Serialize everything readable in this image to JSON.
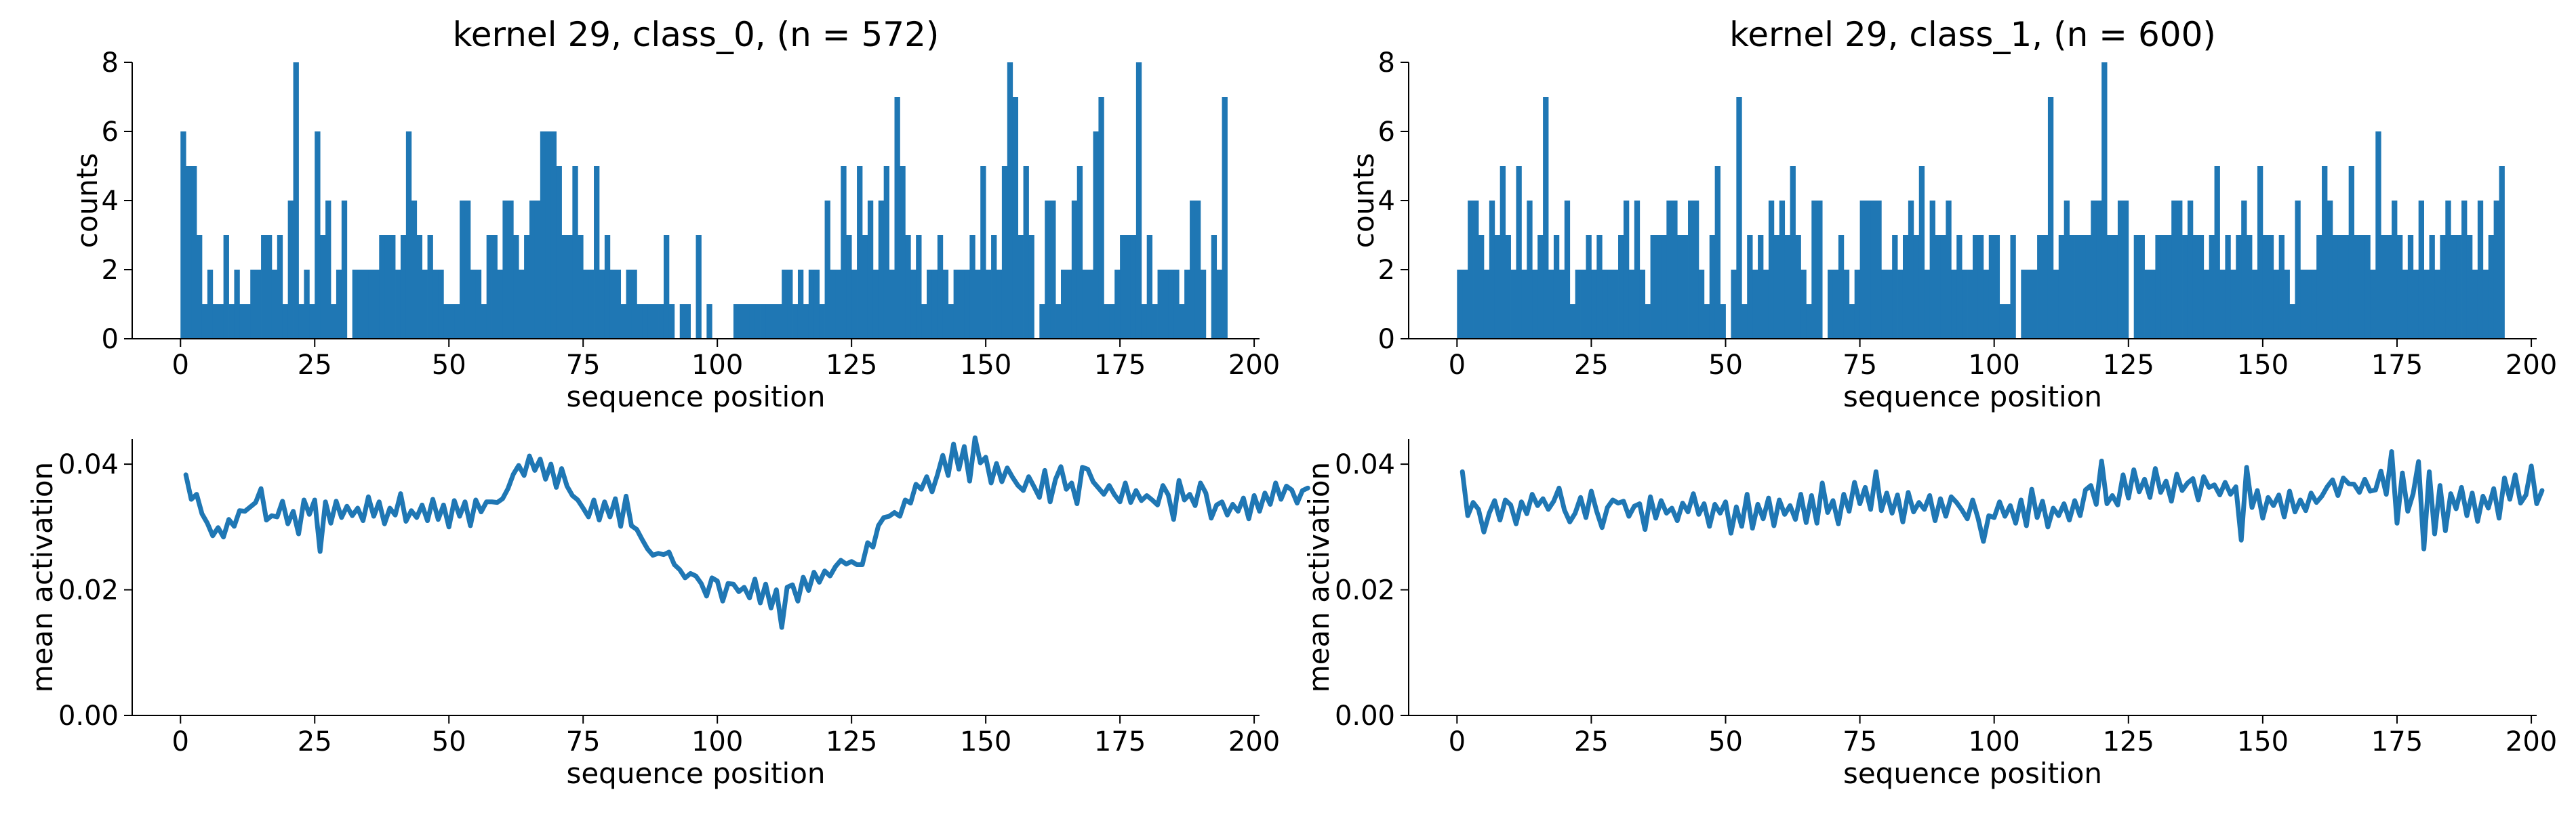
{
  "colors": {
    "series": "#1f77b4",
    "axis": "#000000",
    "background": "#ffffff"
  },
  "chart_data": [
    {
      "type": "bar",
      "title": "kernel 29, class_0, (n = 572)",
      "xlabel": "sequence position",
      "ylabel": "counts",
      "xlim": [
        -9,
        201
      ],
      "ylim": [
        0,
        8
      ],
      "xticks": [
        0,
        25,
        50,
        75,
        100,
        125,
        150,
        175,
        200
      ],
      "yticks": [
        0,
        2,
        4,
        6,
        8
      ],
      "x_start": 0,
      "bin_width": 1,
      "grid": false,
      "values": [
        6,
        5,
        5,
        3,
        1,
        2,
        1,
        1,
        3,
        1,
        2,
        1,
        1,
        2,
        2,
        3,
        3,
        2,
        3,
        1,
        4,
        8,
        1,
        2,
        1,
        6,
        3,
        4,
        1,
        2,
        4,
        0,
        2,
        2,
        2,
        2,
        2,
        3,
        3,
        3,
        2,
        3,
        6,
        4,
        3,
        2,
        3,
        2,
        2,
        1,
        1,
        1,
        4,
        4,
        2,
        2,
        1,
        3,
        3,
        2,
        4,
        4,
        3,
        2,
        3,
        4,
        4,
        6,
        6,
        6,
        5,
        3,
        3,
        5,
        3,
        2,
        2,
        5,
        2,
        3,
        2,
        2,
        1,
        2,
        2,
        1,
        1,
        1,
        1,
        1,
        3,
        1,
        0,
        1,
        1,
        0,
        3,
        0,
        1,
        0,
        0,
        0,
        0,
        1,
        1,
        1,
        1,
        1,
        1,
        1,
        1,
        1,
        2,
        2,
        1,
        2,
        1,
        2,
        2,
        1,
        4,
        2,
        2,
        5,
        3,
        2,
        5,
        3,
        4,
        2,
        4,
        5,
        2,
        7,
        5,
        3,
        2,
        3,
        1,
        2,
        2,
        3,
        2,
        1,
        2,
        2,
        2,
        3,
        2,
        5,
        2,
        3,
        2,
        5,
        8,
        7,
        3,
        5,
        3,
        0,
        1,
        4,
        4,
        1,
        2,
        2,
        4,
        5,
        2,
        2,
        6,
        7,
        1,
        1,
        2,
        3,
        3,
        3,
        8,
        1,
        3,
        1,
        2,
        2,
        2,
        2,
        1,
        2,
        4,
        4,
        2,
        0,
        3,
        2,
        7
      ]
    },
    {
      "type": "bar",
      "title": "kernel 29, class_1, (n = 600)",
      "xlabel": "sequence position",
      "ylabel": "counts",
      "xlim": [
        -9,
        201
      ],
      "ylim": [
        0,
        8
      ],
      "xticks": [
        0,
        25,
        50,
        75,
        100,
        125,
        150,
        175,
        200
      ],
      "yticks": [
        0,
        2,
        4,
        6,
        8
      ],
      "x_start": 0,
      "bin_width": 1,
      "grid": false,
      "values": [
        2,
        2,
        4,
        4,
        3,
        2,
        4,
        3,
        5,
        3,
        2,
        5,
        2,
        4,
        2,
        3,
        7,
        2,
        3,
        2,
        4,
        1,
        2,
        2,
        3,
        2,
        3,
        2,
        2,
        2,
        3,
        4,
        2,
        4,
        2,
        1,
        3,
        3,
        3,
        4,
        4,
        3,
        3,
        4,
        4,
        2,
        1,
        3,
        5,
        1,
        0,
        2,
        7,
        1,
        3,
        2,
        3,
        2,
        4,
        3,
        4,
        3,
        5,
        3,
        2,
        1,
        4,
        4,
        0,
        2,
        2,
        3,
        2,
        1,
        2,
        4,
        4,
        4,
        4,
        2,
        2,
        3,
        2,
        3,
        4,
        3,
        5,
        2,
        4,
        3,
        3,
        4,
        2,
        3,
        2,
        2,
        3,
        3,
        2,
        3,
        3,
        1,
        1,
        3,
        0,
        2,
        2,
        2,
        3,
        3,
        7,
        2,
        3,
        4,
        3,
        3,
        3,
        3,
        4,
        4,
        8,
        3,
        3,
        4,
        4,
        0,
        3,
        3,
        2,
        2,
        3,
        3,
        3,
        4,
        4,
        3,
        4,
        3,
        3,
        2,
        3,
        5,
        2,
        3,
        2,
        3,
        4,
        3,
        2,
        5,
        3,
        3,
        2,
        3,
        2,
        1,
        4,
        2,
        2,
        2,
        3,
        5,
        4,
        3,
        3,
        3,
        5,
        3,
        3,
        3,
        2,
        6,
        3,
        3,
        4,
        3,
        2,
        3,
        2,
        4,
        2,
        3,
        2,
        3,
        4,
        3,
        3,
        4,
        3,
        2,
        4,
        2,
        3,
        4,
        5
      ]
    },
    {
      "type": "line",
      "title": "",
      "xlabel": "sequence position",
      "ylabel": "mean activation",
      "xlim": [
        -9,
        201
      ],
      "ylim": [
        0,
        0.044
      ],
      "xticks": [
        0,
        25,
        50,
        75,
        100,
        125,
        150,
        175,
        200
      ],
      "yticks": [
        0.0,
        0.02,
        0.04
      ],
      "ytick_labels": [
        "0.00",
        "0.02",
        "0.04"
      ],
      "x_start": 1,
      "grid": false,
      "y": [
        0.0383,
        0.0344,
        0.0352,
        0.0321,
        0.0306,
        0.0286,
        0.0299,
        0.0284,
        0.0312,
        0.0301,
        0.0326,
        0.0325,
        0.0332,
        0.0339,
        0.0361,
        0.0311,
        0.0318,
        0.0316,
        0.0341,
        0.0305,
        0.0325,
        0.0289,
        0.0343,
        0.032,
        0.0343,
        0.0261,
        0.034,
        0.0306,
        0.0341,
        0.0315,
        0.0333,
        0.0318,
        0.033,
        0.031,
        0.0348,
        0.0317,
        0.034,
        0.0305,
        0.033,
        0.0319,
        0.0353,
        0.0309,
        0.0326,
        0.0315,
        0.0335,
        0.031,
        0.0344,
        0.0312,
        0.0335,
        0.03,
        0.0342,
        0.0317,
        0.034,
        0.0302,
        0.0343,
        0.0324,
        0.034,
        0.034,
        0.0339,
        0.0345,
        0.0361,
        0.0384,
        0.0398,
        0.0382,
        0.0413,
        0.039,
        0.0408,
        0.0376,
        0.04,
        0.0363,
        0.0393,
        0.0365,
        0.035,
        0.0343,
        0.033,
        0.0316,
        0.0343,
        0.0311,
        0.034,
        0.0316,
        0.0345,
        0.0301,
        0.0349,
        0.0302,
        0.0296,
        0.028,
        0.0265,
        0.0255,
        0.0258,
        0.0256,
        0.026,
        0.024,
        0.0232,
        0.0219,
        0.0226,
        0.0222,
        0.021,
        0.019,
        0.0219,
        0.0214,
        0.0182,
        0.021,
        0.0209,
        0.0197,
        0.0204,
        0.0187,
        0.0217,
        0.0179,
        0.0209,
        0.0171,
        0.02,
        0.014,
        0.0204,
        0.0208,
        0.0182,
        0.022,
        0.0199,
        0.0228,
        0.0212,
        0.023,
        0.0222,
        0.0237,
        0.0247,
        0.0241,
        0.0245,
        0.024,
        0.024,
        0.0275,
        0.0268,
        0.0302,
        0.0315,
        0.0317,
        0.0323,
        0.0317,
        0.0343,
        0.0338,
        0.0368,
        0.036,
        0.038,
        0.0356,
        0.0383,
        0.0414,
        0.0382,
        0.0432,
        0.0392,
        0.0428,
        0.0373,
        0.0442,
        0.0402,
        0.0411,
        0.037,
        0.0401,
        0.0372,
        0.0394,
        0.0379,
        0.0366,
        0.0358,
        0.038,
        0.0364,
        0.0347,
        0.039,
        0.034,
        0.0376,
        0.0396,
        0.036,
        0.037,
        0.0337,
        0.0395,
        0.0392,
        0.0372,
        0.0362,
        0.0352,
        0.0366,
        0.0351,
        0.034,
        0.037,
        0.0339,
        0.0358,
        0.0342,
        0.035,
        0.0343,
        0.0335,
        0.0366,
        0.0351,
        0.0312,
        0.0374,
        0.0343,
        0.0352,
        0.0334,
        0.037,
        0.0354,
        0.0314,
        0.0335,
        0.034,
        0.0319,
        0.0336,
        0.0325,
        0.0346,
        0.0313,
        0.035,
        0.0325,
        0.0354,
        0.0336,
        0.037,
        0.0344,
        0.0365,
        0.0359,
        0.0338,
        0.0358,
        0.0362
      ]
    },
    {
      "type": "line",
      "title": "",
      "xlabel": "sequence position",
      "ylabel": "mean activation",
      "xlim": [
        -9,
        201
      ],
      "ylim": [
        0,
        0.044
      ],
      "xticks": [
        0,
        25,
        50,
        75,
        100,
        125,
        150,
        175,
        200
      ],
      "yticks": [
        0.0,
        0.02,
        0.04
      ],
      "ytick_labels": [
        "0.00",
        "0.02",
        "0.04"
      ],
      "x_start": 1,
      "grid": false,
      "y": [
        0.0388,
        0.0318,
        0.0339,
        0.0328,
        0.0292,
        0.0322,
        0.0342,
        0.0311,
        0.0343,
        0.0335,
        0.0305,
        0.034,
        0.0321,
        0.0352,
        0.0334,
        0.0345,
        0.0328,
        0.0341,
        0.0362,
        0.0327,
        0.0308,
        0.0322,
        0.0347,
        0.0315,
        0.0357,
        0.0325,
        0.0299,
        0.0331,
        0.0343,
        0.0338,
        0.0341,
        0.0317,
        0.0333,
        0.0337,
        0.0296,
        0.0348,
        0.0314,
        0.0342,
        0.0322,
        0.033,
        0.031,
        0.0338,
        0.0324,
        0.0353,
        0.032,
        0.0337,
        0.0301,
        0.0336,
        0.0322,
        0.034,
        0.029,
        0.0332,
        0.0301,
        0.0352,
        0.0298,
        0.0336,
        0.0313,
        0.0346,
        0.0302,
        0.0343,
        0.032,
        0.0334,
        0.0312,
        0.0352,
        0.0307,
        0.035,
        0.0306,
        0.037,
        0.0323,
        0.0342,
        0.0305,
        0.0352,
        0.0325,
        0.0371,
        0.0337,
        0.0363,
        0.0328,
        0.0388,
        0.0326,
        0.0354,
        0.0322,
        0.0351,
        0.0308,
        0.0355,
        0.0324,
        0.0339,
        0.0328,
        0.035,
        0.031,
        0.0345,
        0.0317,
        0.0348,
        0.0339,
        0.0327,
        0.0313,
        0.0343,
        0.0314,
        0.0277,
        0.0318,
        0.0315,
        0.034,
        0.0317,
        0.0334,
        0.0306,
        0.0343,
        0.0302,
        0.036,
        0.0315,
        0.0341,
        0.03,
        0.033,
        0.0318,
        0.0337,
        0.0311,
        0.0342,
        0.0318,
        0.0359,
        0.0366,
        0.0336,
        0.0405,
        0.0337,
        0.035,
        0.0335,
        0.0383,
        0.0346,
        0.0391,
        0.0356,
        0.0376,
        0.0347,
        0.0393,
        0.0355,
        0.0373,
        0.0341,
        0.0384,
        0.0358,
        0.037,
        0.0377,
        0.0343,
        0.038,
        0.0363,
        0.0367,
        0.0351,
        0.0371,
        0.0352,
        0.0364,
        0.0279,
        0.0395,
        0.0331,
        0.0358,
        0.0314,
        0.0347,
        0.0334,
        0.0351,
        0.0316,
        0.0357,
        0.0324,
        0.0343,
        0.0326,
        0.0354,
        0.0339,
        0.0349,
        0.0364,
        0.0375,
        0.035,
        0.0378,
        0.0369,
        0.0368,
        0.0355,
        0.0376,
        0.0357,
        0.0359,
        0.0389,
        0.0352,
        0.042,
        0.0306,
        0.0386,
        0.0325,
        0.0353,
        0.0404,
        0.0265,
        0.0388,
        0.0289,
        0.0366,
        0.0294,
        0.0353,
        0.0329,
        0.0363,
        0.0318,
        0.0354,
        0.0309,
        0.0349,
        0.033,
        0.0361,
        0.0314,
        0.0378,
        0.0344,
        0.0383,
        0.0338,
        0.0351,
        0.0397,
        0.0337,
        0.0358
      ]
    }
  ]
}
